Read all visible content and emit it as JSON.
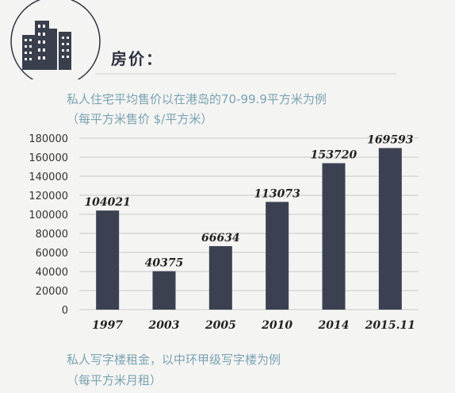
{
  "header": {
    "icon": "building-icon",
    "title": "房价："
  },
  "chart_section": {
    "subtitle_line1": "私人住宅平均售价以在港岛的70-99.9平方米为例",
    "subtitle_line2": "（每平方米售价 $/平方米）"
  },
  "next_section": {
    "subtitle_line1": "私人写字楼租金，以中环甲级写字楼为例",
    "subtitle_line2": "（每平方米月租）"
  },
  "colors": {
    "bar": "#3c4152",
    "accent_text": "#7aa3b3",
    "title_text": "#2d3340",
    "gridline": "#c8c8c8"
  },
  "chart_data": {
    "type": "bar",
    "categories": [
      "1997",
      "2003",
      "2005",
      "2010",
      "2014",
      "2015.11"
    ],
    "values": [
      104021,
      40375,
      66634,
      113073,
      153720,
      169593
    ],
    "data_labels": [
      "104021",
      "40375",
      "66634",
      "113073",
      "153720",
      "169593"
    ],
    "ylim": [
      0,
      180000
    ],
    "yticks": [
      0,
      20000,
      40000,
      60000,
      80000,
      100000,
      120000,
      140000,
      160000,
      180000
    ],
    "ytick_labels": [
      "0",
      "20000",
      "40000",
      "60000",
      "80000",
      "100000",
      "120000",
      "140000",
      "160000",
      "180000"
    ],
    "grid": true,
    "legend": "none",
    "title": "",
    "xlabel": "",
    "ylabel": ""
  }
}
